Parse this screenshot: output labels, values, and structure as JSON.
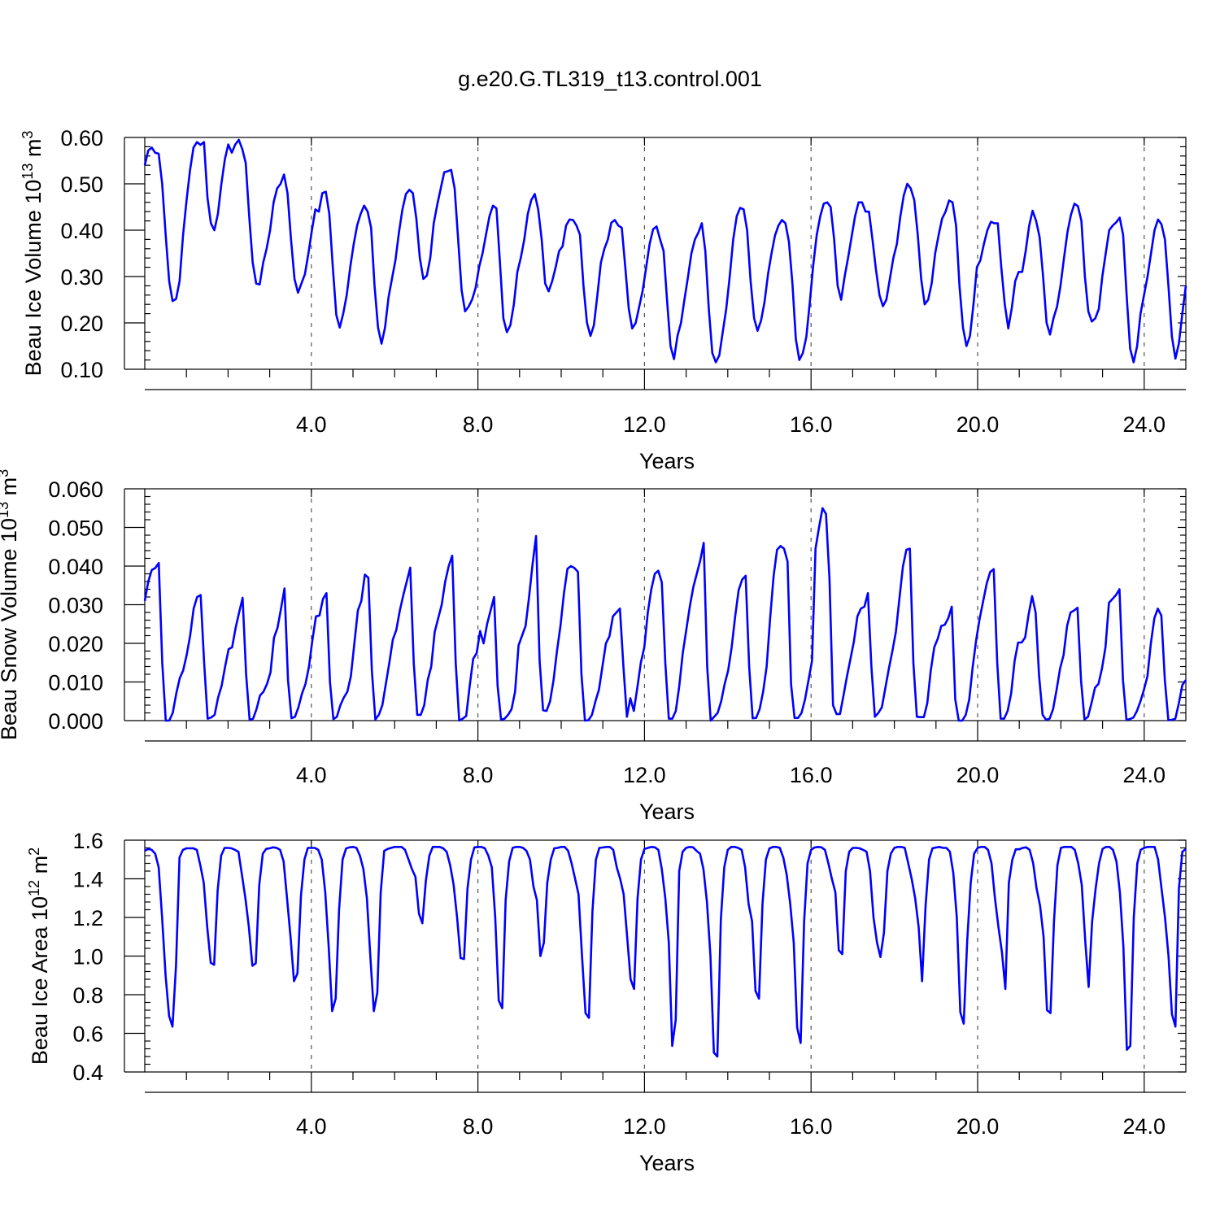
{
  "figure_title": "g.e20.G.TL319_t13.control.001",
  "chart_data": [
    {
      "type": "line",
      "ylabel": "Beau Ice Volume 10",
      "ylabel_exp": "13",
      "ylabel_unit": " m",
      "ylabel_unit_exp": "3",
      "xlabel": "Years",
      "xlim": [
        0,
        25
      ],
      "ylim": [
        0.1,
        0.6
      ],
      "xticks": [
        4,
        8,
        12,
        16,
        20,
        24
      ],
      "xtick_labels": [
        "4.0",
        "8.0",
        "12.0",
        "16.0",
        "20.0",
        "24.0"
      ],
      "yticks": [
        0.1,
        0.2,
        0.3,
        0.4,
        0.5,
        0.6
      ],
      "ytick_labels": [
        "0.10",
        "0.20",
        "0.30",
        "0.40",
        "0.50",
        "0.60"
      ],
      "grid": "dashed vertical at major x ticks",
      "line_color": "#0000ff",
      "series": [
        {
          "values": [
            0.54,
            0.572,
            0.578,
            0.567,
            0.565,
            0.5,
            0.39,
            0.29,
            0.247,
            0.252,
            0.29,
            0.39,
            0.465,
            0.53,
            0.578,
            0.59,
            0.584,
            0.59,
            0.47,
            0.415,
            0.4,
            0.435,
            0.5,
            0.553,
            0.585,
            0.567,
            0.585,
            0.595,
            0.575,
            0.545,
            0.43,
            0.33,
            0.285,
            0.283,
            0.33,
            0.36,
            0.4,
            0.46,
            0.49,
            0.5,
            0.52,
            0.48,
            0.38,
            0.295,
            0.265,
            0.285,
            0.305,
            0.35,
            0.4,
            0.445,
            0.44,
            0.48,
            0.483,
            0.435,
            0.32,
            0.217,
            0.19,
            0.22,
            0.26,
            0.32,
            0.37,
            0.41,
            0.435,
            0.453,
            0.44,
            0.405,
            0.28,
            0.19,
            0.155,
            0.19,
            0.255,
            0.295,
            0.335,
            0.395,
            0.445,
            0.478,
            0.487,
            0.48,
            0.425,
            0.34,
            0.295,
            0.302,
            0.34,
            0.415,
            0.455,
            0.49,
            0.525,
            0.527,
            0.53,
            0.49,
            0.38,
            0.27,
            0.225,
            0.235,
            0.25,
            0.275,
            0.32,
            0.35,
            0.39,
            0.43,
            0.453,
            0.447,
            0.33,
            0.21,
            0.18,
            0.195,
            0.24,
            0.31,
            0.34,
            0.38,
            0.435,
            0.465,
            0.478,
            0.445,
            0.38,
            0.285,
            0.268,
            0.29,
            0.32,
            0.355,
            0.365,
            0.41,
            0.423,
            0.422,
            0.41,
            0.39,
            0.28,
            0.2,
            0.172,
            0.195,
            0.26,
            0.33,
            0.36,
            0.38,
            0.416,
            0.422,
            0.41,
            0.405,
            0.32,
            0.23,
            0.188,
            0.2,
            0.235,
            0.27,
            0.32,
            0.37,
            0.402,
            0.408,
            0.38,
            0.355,
            0.25,
            0.15,
            0.122,
            0.172,
            0.2,
            0.25,
            0.298,
            0.35,
            0.38,
            0.395,
            0.415,
            0.355,
            0.23,
            0.135,
            0.115,
            0.13,
            0.18,
            0.23,
            0.3,
            0.38,
            0.43,
            0.448,
            0.445,
            0.4,
            0.29,
            0.21,
            0.183,
            0.205,
            0.245,
            0.305,
            0.35,
            0.388,
            0.41,
            0.422,
            0.415,
            0.375,
            0.285,
            0.165,
            0.12,
            0.135,
            0.17,
            0.245,
            0.325,
            0.39,
            0.43,
            0.457,
            0.46,
            0.45,
            0.38,
            0.28,
            0.25,
            0.3,
            0.34,
            0.385,
            0.43,
            0.46,
            0.46,
            0.44,
            0.44,
            0.38,
            0.315,
            0.26,
            0.236,
            0.25,
            0.295,
            0.34,
            0.37,
            0.43,
            0.475,
            0.5,
            0.49,
            0.465,
            0.39,
            0.295,
            0.24,
            0.25,
            0.285,
            0.35,
            0.39,
            0.425,
            0.44,
            0.464,
            0.46,
            0.41,
            0.28,
            0.19,
            0.15,
            0.172,
            0.24,
            0.32,
            0.335,
            0.37,
            0.4,
            0.418,
            0.415,
            0.415,
            0.32,
            0.24,
            0.188,
            0.232,
            0.29,
            0.31,
            0.31,
            0.355,
            0.41,
            0.442,
            0.42,
            0.385,
            0.3,
            0.2,
            0.175,
            0.21,
            0.235,
            0.28,
            0.34,
            0.395,
            0.433,
            0.457,
            0.452,
            0.42,
            0.3,
            0.225,
            0.203,
            0.21,
            0.23,
            0.3,
            0.35,
            0.4,
            0.41,
            0.417,
            0.427,
            0.39,
            0.26,
            0.145,
            0.115,
            0.15,
            0.22,
            0.26,
            0.3,
            0.35,
            0.4,
            0.423,
            0.413,
            0.38,
            0.28,
            0.17,
            0.123,
            0.155,
            0.22,
            0.28
          ]
        }
      ]
    },
    {
      "type": "line",
      "ylabel": "Beau Snow Volume 10",
      "ylabel_exp": "13",
      "ylabel_unit": " m",
      "ylabel_unit_exp": "3",
      "xlabel": "Years",
      "xlim": [
        0,
        25
      ],
      "ylim": [
        0.0,
        0.06
      ],
      "xticks": [
        4,
        8,
        12,
        16,
        20,
        24
      ],
      "xtick_labels": [
        "4.0",
        "8.0",
        "12.0",
        "16.0",
        "20.0",
        "24.0"
      ],
      "yticks": [
        0.0,
        0.01,
        0.02,
        0.03,
        0.04,
        0.05,
        0.06
      ],
      "ytick_labels": [
        "0.000",
        "0.010",
        "0.020",
        "0.030",
        "0.040",
        "0.050",
        "0.060"
      ],
      "grid": "dashed vertical at major x ticks",
      "line_color": "#0000ff",
      "series": [
        {
          "values": [
            0.031,
            0.036,
            0.039,
            0.0395,
            0.0408,
            0.015,
            0.0,
            0.0,
            0.002,
            0.007,
            0.011,
            0.013,
            0.017,
            0.022,
            0.029,
            0.032,
            0.0325,
            0.015,
            0.0005,
            0.0008,
            0.0015,
            0.006,
            0.009,
            0.014,
            0.0185,
            0.019,
            0.024,
            0.028,
            0.0318,
            0.012,
            0.0002,
            0.0005,
            0.003,
            0.0065,
            0.0075,
            0.0095,
            0.0125,
            0.0215,
            0.024,
            0.029,
            0.0342,
            0.0105,
            0.0006,
            0.001,
            0.0035,
            0.007,
            0.0095,
            0.014,
            0.021,
            0.027,
            0.0272,
            0.0315,
            0.033,
            0.01,
            0.0004,
            0.001,
            0.004,
            0.006,
            0.0075,
            0.0115,
            0.02,
            0.0285,
            0.031,
            0.0378,
            0.037,
            0.013,
            0.0003,
            0.0015,
            0.004,
            0.0095,
            0.015,
            0.021,
            0.0235,
            0.0285,
            0.0325,
            0.036,
            0.0396,
            0.015,
            0.0015,
            0.0015,
            0.004,
            0.0105,
            0.014,
            0.023,
            0.0265,
            0.03,
            0.036,
            0.04,
            0.0427,
            0.015,
            0.0,
            0.0005,
            0.0012,
            0.009,
            0.016,
            0.0175,
            0.0232,
            0.02,
            0.025,
            0.0285,
            0.032,
            0.009,
            0.0002,
            0.0005,
            0.0015,
            0.003,
            0.0075,
            0.0195,
            0.022,
            0.0245,
            0.032,
            0.0405,
            0.0478,
            0.0157,
            0.0027,
            0.0025,
            0.005,
            0.0105,
            0.018,
            0.0245,
            0.033,
            0.0393,
            0.04,
            0.0395,
            0.0385,
            0.012,
            0.0,
            0.0001,
            0.0015,
            0.005,
            0.008,
            0.014,
            0.02,
            0.0218,
            0.027,
            0.028,
            0.029,
            0.014,
            0.001,
            0.0058,
            0.0025,
            0.0085,
            0.015,
            0.019,
            0.028,
            0.034,
            0.038,
            0.0388,
            0.0358,
            0.015,
            0.0005,
            0.0005,
            0.0025,
            0.009,
            0.0175,
            0.0235,
            0.0295,
            0.0345,
            0.038,
            0.0415,
            0.046,
            0.014,
            0.0,
            0.001,
            0.002,
            0.005,
            0.0095,
            0.013,
            0.019,
            0.027,
            0.0338,
            0.0365,
            0.0375,
            0.014,
            0.0006,
            0.0007,
            0.003,
            0.0075,
            0.014,
            0.0265,
            0.0375,
            0.0442,
            0.0452,
            0.0445,
            0.0412,
            0.0095,
            0.0007,
            0.0007,
            0.002,
            0.0055,
            0.0105,
            0.0155,
            0.0445,
            0.05,
            0.055,
            0.0535,
            0.0365,
            0.004,
            0.0017,
            0.0017,
            0.0065,
            0.0115,
            0.016,
            0.0205,
            0.027,
            0.029,
            0.0295,
            0.033,
            0.014,
            0.001,
            0.002,
            0.0035,
            0.0085,
            0.0135,
            0.018,
            0.023,
            0.0315,
            0.0398,
            0.0442,
            0.0445,
            0.015,
            0.001,
            0.0009,
            0.0009,
            0.0045,
            0.013,
            0.019,
            0.0212,
            0.0245,
            0.0248,
            0.0265,
            0.0295,
            0.0055,
            0.0,
            0.0,
            0.0015,
            0.0055,
            0.014,
            0.021,
            0.0265,
            0.031,
            0.0355,
            0.0385,
            0.0392,
            0.015,
            0.0005,
            0.0005,
            0.0025,
            0.007,
            0.0155,
            0.0202,
            0.0202,
            0.0215,
            0.0275,
            0.0322,
            0.028,
            0.0115,
            0.0015,
            0.0002,
            0.0005,
            0.003,
            0.008,
            0.0135,
            0.017,
            0.0245,
            0.028,
            0.0285,
            0.0292,
            0.0105,
            0.0003,
            0.001,
            0.0045,
            0.0085,
            0.0095,
            0.0135,
            0.019,
            0.0305,
            0.0315,
            0.0325,
            0.034,
            0.0105,
            0.0002,
            0.0004,
            0.0008,
            0.0025,
            0.005,
            0.008,
            0.0115,
            0.02,
            0.0265,
            0.029,
            0.0272,
            0.0105,
            0.0001,
            0.0002,
            0.0005,
            0.0045,
            0.0092,
            0.0105
          ]
        }
      ]
    },
    {
      "type": "line",
      "ylabel": "Beau Ice Area 10",
      "ylabel_exp": "12",
      "ylabel_unit": " m",
      "ylabel_unit_exp": "2",
      "xlabel": "Years",
      "xlim": [
        0,
        25
      ],
      "ylim": [
        0.4,
        1.6
      ],
      "xticks": [
        4,
        8,
        12,
        16,
        20,
        24
      ],
      "xtick_labels": [
        "4.0",
        "8.0",
        "12.0",
        "16.0",
        "20.0",
        "24.0"
      ],
      "yticks": [
        0.4,
        0.6,
        0.8,
        1.0,
        1.2,
        1.4,
        1.6
      ],
      "ytick_labels": [
        "0.4",
        "0.6",
        "0.8",
        "1.0",
        "1.2",
        "1.4",
        "1.6"
      ],
      "grid": "dashed vertical at major x ticks",
      "line_color": "#0000ff",
      "series": [
        {
          "values": [
            1.545,
            1.555,
            1.55,
            1.53,
            1.46,
            1.2,
            0.9,
            0.69,
            0.635,
            0.95,
            1.51,
            1.55,
            1.558,
            1.558,
            1.558,
            1.55,
            1.47,
            1.38,
            1.15,
            0.965,
            0.955,
            1.34,
            1.52,
            1.56,
            1.56,
            1.558,
            1.55,
            1.54,
            1.42,
            1.3,
            1.15,
            0.95,
            0.963,
            1.37,
            1.53,
            1.555,
            1.558,
            1.563,
            1.56,
            1.55,
            1.49,
            1.3,
            1.1,
            0.87,
            0.91,
            1.31,
            1.5,
            1.56,
            1.56,
            1.56,
            1.55,
            1.5,
            1.33,
            1.05,
            0.715,
            0.78,
            1.24,
            1.5,
            1.557,
            1.563,
            1.565,
            1.56,
            1.52,
            1.45,
            1.3,
            1.0,
            0.715,
            0.81,
            1.33,
            1.545,
            1.555,
            1.56,
            1.565,
            1.565,
            1.565,
            1.55,
            1.5,
            1.45,
            1.41,
            1.22,
            1.17,
            1.39,
            1.52,
            1.565,
            1.565,
            1.565,
            1.558,
            1.54,
            1.47,
            1.37,
            1.2,
            0.99,
            0.985,
            1.35,
            1.5,
            1.563,
            1.565,
            1.565,
            1.558,
            1.52,
            1.46,
            1.2,
            0.77,
            0.73,
            1.29,
            1.49,
            1.56,
            1.565,
            1.565,
            1.56,
            1.545,
            1.5,
            1.36,
            1.29,
            1.0,
            1.07,
            1.38,
            1.5,
            1.558,
            1.56,
            1.565,
            1.565,
            1.545,
            1.48,
            1.4,
            1.32,
            1.0,
            0.705,
            0.68,
            1.23,
            1.5,
            1.56,
            1.562,
            1.565,
            1.565,
            1.55,
            1.46,
            1.4,
            1.32,
            1.1,
            0.88,
            0.83,
            1.3,
            1.5,
            1.555,
            1.56,
            1.565,
            1.563,
            1.55,
            1.45,
            1.3,
            1.07,
            0.535,
            0.67,
            1.44,
            1.54,
            1.56,
            1.565,
            1.563,
            1.545,
            1.53,
            1.45,
            1.28,
            1.0,
            0.5,
            0.48,
            1.19,
            1.46,
            1.55,
            1.565,
            1.565,
            1.56,
            1.55,
            1.46,
            1.27,
            1.18,
            0.82,
            0.78,
            1.27,
            1.5,
            1.557,
            1.565,
            1.565,
            1.56,
            1.51,
            1.42,
            1.27,
            1.07,
            0.63,
            0.55,
            1.18,
            1.48,
            1.55,
            1.562,
            1.565,
            1.563,
            1.55,
            1.48,
            1.4,
            1.33,
            1.03,
            1.01,
            1.44,
            1.54,
            1.56,
            1.56,
            1.558,
            1.55,
            1.54,
            1.44,
            1.2,
            1.07,
            0.995,
            1.12,
            1.44,
            1.53,
            1.56,
            1.565,
            1.565,
            1.56,
            1.48,
            1.4,
            1.3,
            1.15,
            0.87,
            1.26,
            1.5,
            1.558,
            1.562,
            1.565,
            1.56,
            1.56,
            1.54,
            1.43,
            1.2,
            0.71,
            0.65,
            1.08,
            1.38,
            1.53,
            1.56,
            1.565,
            1.565,
            1.55,
            1.48,
            1.3,
            1.15,
            1.02,
            0.83,
            1.38,
            1.5,
            1.553,
            1.553,
            1.56,
            1.563,
            1.55,
            1.48,
            1.35,
            1.26,
            1.1,
            0.72,
            0.705,
            1.18,
            1.47,
            1.56,
            1.565,
            1.565,
            1.565,
            1.55,
            1.48,
            1.37,
            1.08,
            0.84,
            1.18,
            1.35,
            1.48,
            1.555,
            1.565,
            1.565,
            1.55,
            1.49,
            1.33,
            1.05,
            0.515,
            0.535,
            1.2,
            1.48,
            1.55,
            1.56,
            1.565,
            1.565,
            1.565,
            1.5,
            1.35,
            1.2,
            1.0,
            0.7,
            0.635,
            1.35,
            1.54,
            1.555
          ]
        }
      ]
    }
  ]
}
